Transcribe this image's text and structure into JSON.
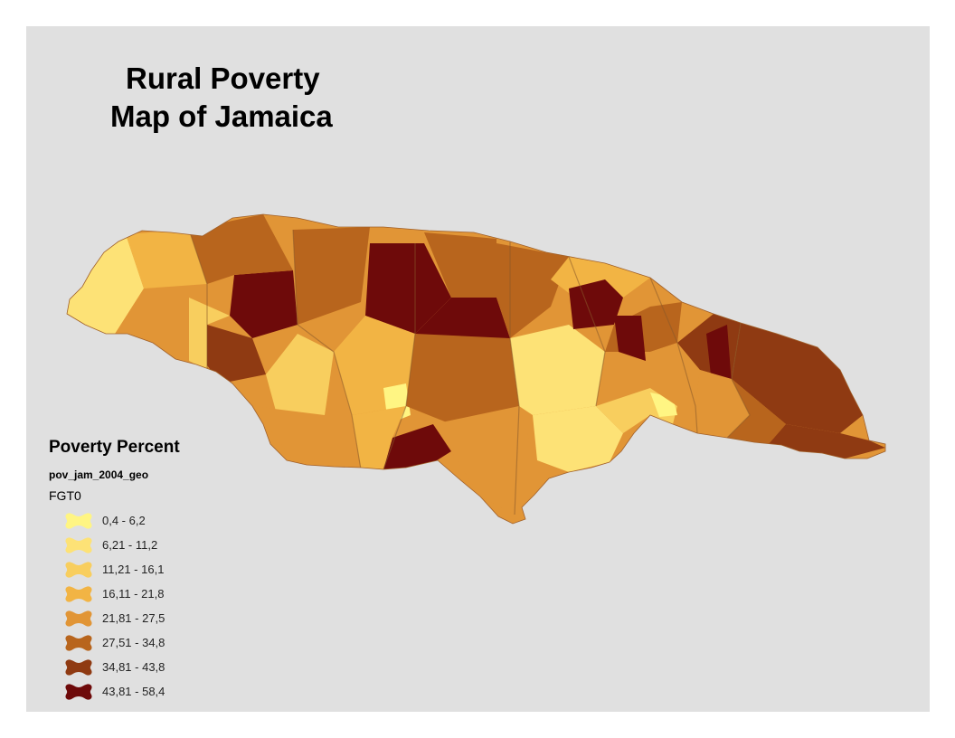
{
  "title": {
    "line1": "Rural Poverty",
    "line2": "Map of Jamaica"
  },
  "legend": {
    "title": "Poverty Percent",
    "layer": "pov_jam_2004_geo",
    "field": "FGT0",
    "classes": [
      {
        "label": "0,4 - 6,2",
        "color": "#fff583"
      },
      {
        "label": "6,21 - 11,2",
        "color": "#fde276"
      },
      {
        "label": "11,21 - 16,1",
        "color": "#f8ce5e"
      },
      {
        "label": "16,11 - 21,8",
        "color": "#f2b444"
      },
      {
        "label": "21,81 - 27,5",
        "color": "#e19536"
      },
      {
        "label": "27,51 - 34,8",
        "color": "#b8651d"
      },
      {
        "label": "34,81 - 43,8",
        "color": "#8f3a12"
      },
      {
        "label": "43,81 - 58,4",
        "color": "#6e0a0a"
      }
    ]
  },
  "colors": {
    "background": "#e0e0e0",
    "parish_border": "#8a5a2a"
  }
}
